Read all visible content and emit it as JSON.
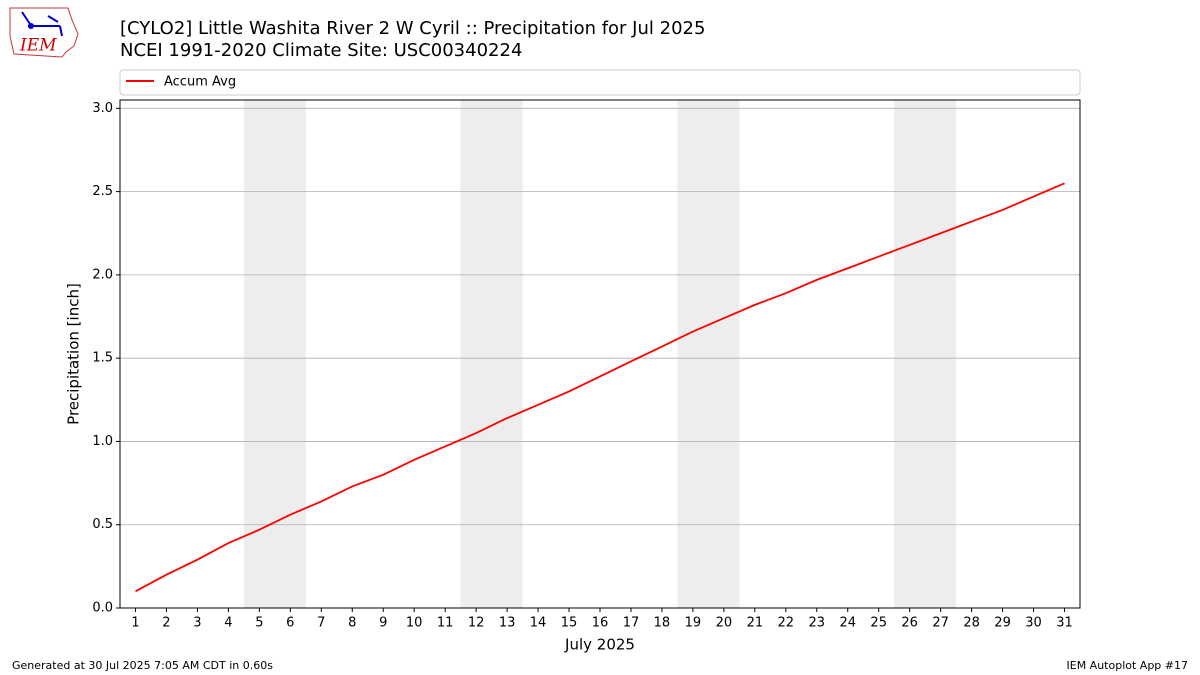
{
  "chart_data": {
    "type": "line",
    "title": "[CYLO2] Little Washita River 2 W Cyril :: Precipitation for Jul 2025",
    "subtitle": "NCEI 1991-2020 Climate Site: USC00340224",
    "xlabel": "July 2025",
    "ylabel": "Precipitation [inch]",
    "x": [
      1,
      2,
      3,
      4,
      5,
      6,
      7,
      8,
      9,
      10,
      11,
      12,
      13,
      14,
      15,
      16,
      17,
      18,
      19,
      20,
      21,
      22,
      23,
      24,
      25,
      26,
      27,
      28,
      29,
      30,
      31
    ],
    "series": [
      {
        "name": "Accum Avg",
        "color": "#ff0000",
        "values": [
          0.1,
          0.2,
          0.29,
          0.39,
          0.47,
          0.56,
          0.64,
          0.73,
          0.8,
          0.89,
          0.97,
          1.05,
          1.14,
          1.22,
          1.3,
          1.39,
          1.48,
          1.57,
          1.66,
          1.74,
          1.82,
          1.89,
          1.97,
          2.04,
          2.11,
          2.18,
          2.25,
          2.32,
          2.39,
          2.47,
          2.55
        ]
      }
    ],
    "shaded_spans": [
      [
        4.5,
        6.5
      ],
      [
        11.5,
        13.5
      ],
      [
        18.5,
        20.5
      ],
      [
        25.5,
        27.5
      ]
    ],
    "shade_color": "#ededed",
    "xlim": [
      0.5,
      31.5
    ],
    "ylim": [
      0,
      3.05
    ],
    "xticks": [
      1,
      2,
      3,
      4,
      5,
      6,
      7,
      8,
      9,
      10,
      11,
      12,
      13,
      14,
      15,
      16,
      17,
      18,
      19,
      20,
      21,
      22,
      23,
      24,
      25,
      26,
      27,
      28,
      29,
      30,
      31
    ],
    "yticks": [
      {
        "value": 0,
        "label": "0.0"
      },
      {
        "value": 0.5,
        "label": "0.5"
      },
      {
        "value": 1,
        "label": "1.0"
      },
      {
        "value": 1.5,
        "label": "1.5"
      },
      {
        "value": 2,
        "label": "2.0"
      },
      {
        "value": 2.5,
        "label": "2.5"
      },
      {
        "value": 3,
        "label": "3.0"
      }
    ],
    "grid": true,
    "legend": "top"
  },
  "footer": {
    "left": "Generated at 30 Jul 2025 7:05 AM CDT in 0.60s",
    "right": "IEM Autoplot App #17"
  },
  "logo": {
    "text": "IEM"
  }
}
